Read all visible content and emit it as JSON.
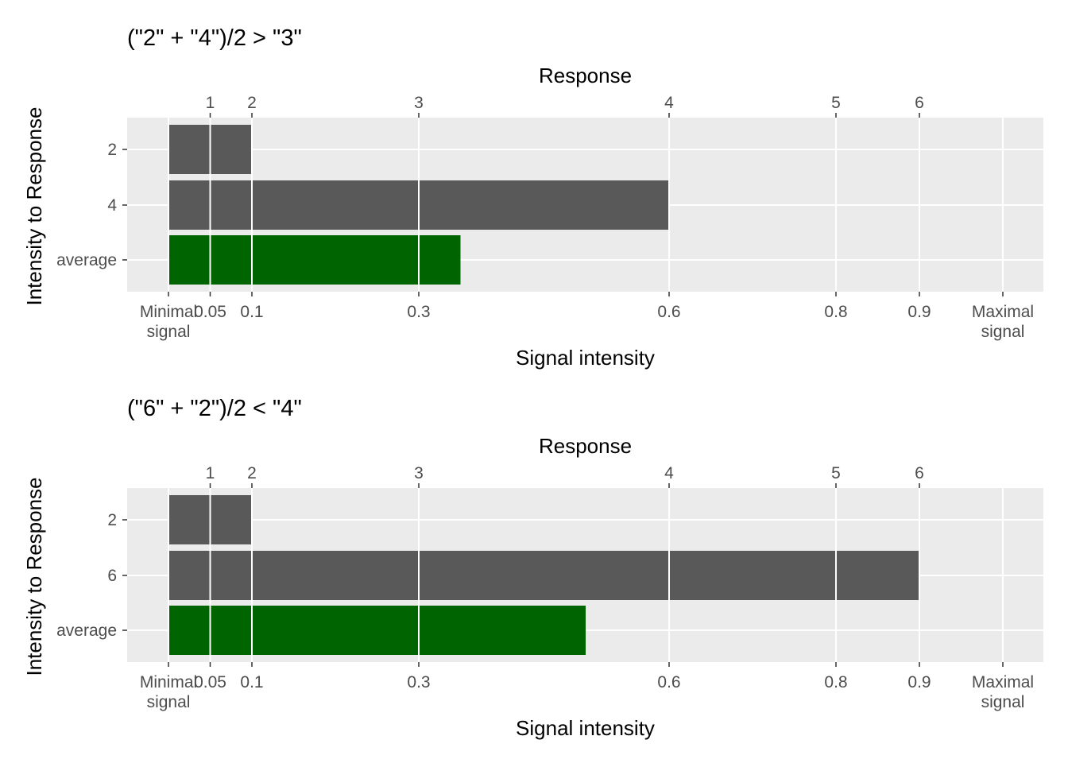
{
  "chart_data": [
    {
      "type": "bar",
      "orientation": "horizontal",
      "title": "(\"2\" + \"4\")/2 > \"3\"",
      "top_axis_title": "Response",
      "top_axis_ticks": [
        {
          "label": "1",
          "value": 0.05
        },
        {
          "label": "2",
          "value": 0.1
        },
        {
          "label": "3",
          "value": 0.3
        },
        {
          "label": "4",
          "value": 0.6
        },
        {
          "label": "5",
          "value": 0.8
        },
        {
          "label": "6",
          "value": 0.9
        }
      ],
      "xlabel": "Signal intensity",
      "xlim": [
        0,
        1
      ],
      "x_ticks": [
        {
          "label": "Minimal\nsignal",
          "value": 0
        },
        {
          "label": "0.05",
          "value": 0.05
        },
        {
          "label": "0.1",
          "value": 0.1
        },
        {
          "label": "0.3",
          "value": 0.3
        },
        {
          "label": "0.6",
          "value": 0.6
        },
        {
          "label": "0.8",
          "value": 0.8
        },
        {
          "label": "0.9",
          "value": 0.9
        },
        {
          "label": "Maximal\nsignal",
          "value": 1
        }
      ],
      "ylabel": "Intensity to Response",
      "categories": [
        "2",
        "4",
        "average"
      ],
      "values": [
        0.1,
        0.6,
        0.35
      ],
      "colors": [
        "#595959",
        "#595959",
        "#006400"
      ],
      "grid": true,
      "panel_background": "#ebebeb"
    },
    {
      "type": "bar",
      "orientation": "horizontal",
      "title": "(\"6\" + \"2\")/2 < \"4\"",
      "top_axis_title": "Response",
      "top_axis_ticks": [
        {
          "label": "1",
          "value": 0.05
        },
        {
          "label": "2",
          "value": 0.1
        },
        {
          "label": "3",
          "value": 0.3
        },
        {
          "label": "4",
          "value": 0.6
        },
        {
          "label": "5",
          "value": 0.8
        },
        {
          "label": "6",
          "value": 0.9
        }
      ],
      "xlabel": "Signal intensity",
      "xlim": [
        0,
        1
      ],
      "x_ticks": [
        {
          "label": "Minimal\nsignal",
          "value": 0
        },
        {
          "label": "0.05",
          "value": 0.05
        },
        {
          "label": "0.1",
          "value": 0.1
        },
        {
          "label": "0.3",
          "value": 0.3
        },
        {
          "label": "0.6",
          "value": 0.6
        },
        {
          "label": "0.8",
          "value": 0.8
        },
        {
          "label": "0.9",
          "value": 0.9
        },
        {
          "label": "Maximal\nsignal",
          "value": 1
        }
      ],
      "ylabel": "Intensity to Response",
      "categories": [
        "2",
        "6",
        "average"
      ],
      "values": [
        0.1,
        0.9,
        0.5
      ],
      "colors": [
        "#595959",
        "#595959",
        "#006400"
      ],
      "grid": true,
      "panel_background": "#ebebeb"
    }
  ]
}
